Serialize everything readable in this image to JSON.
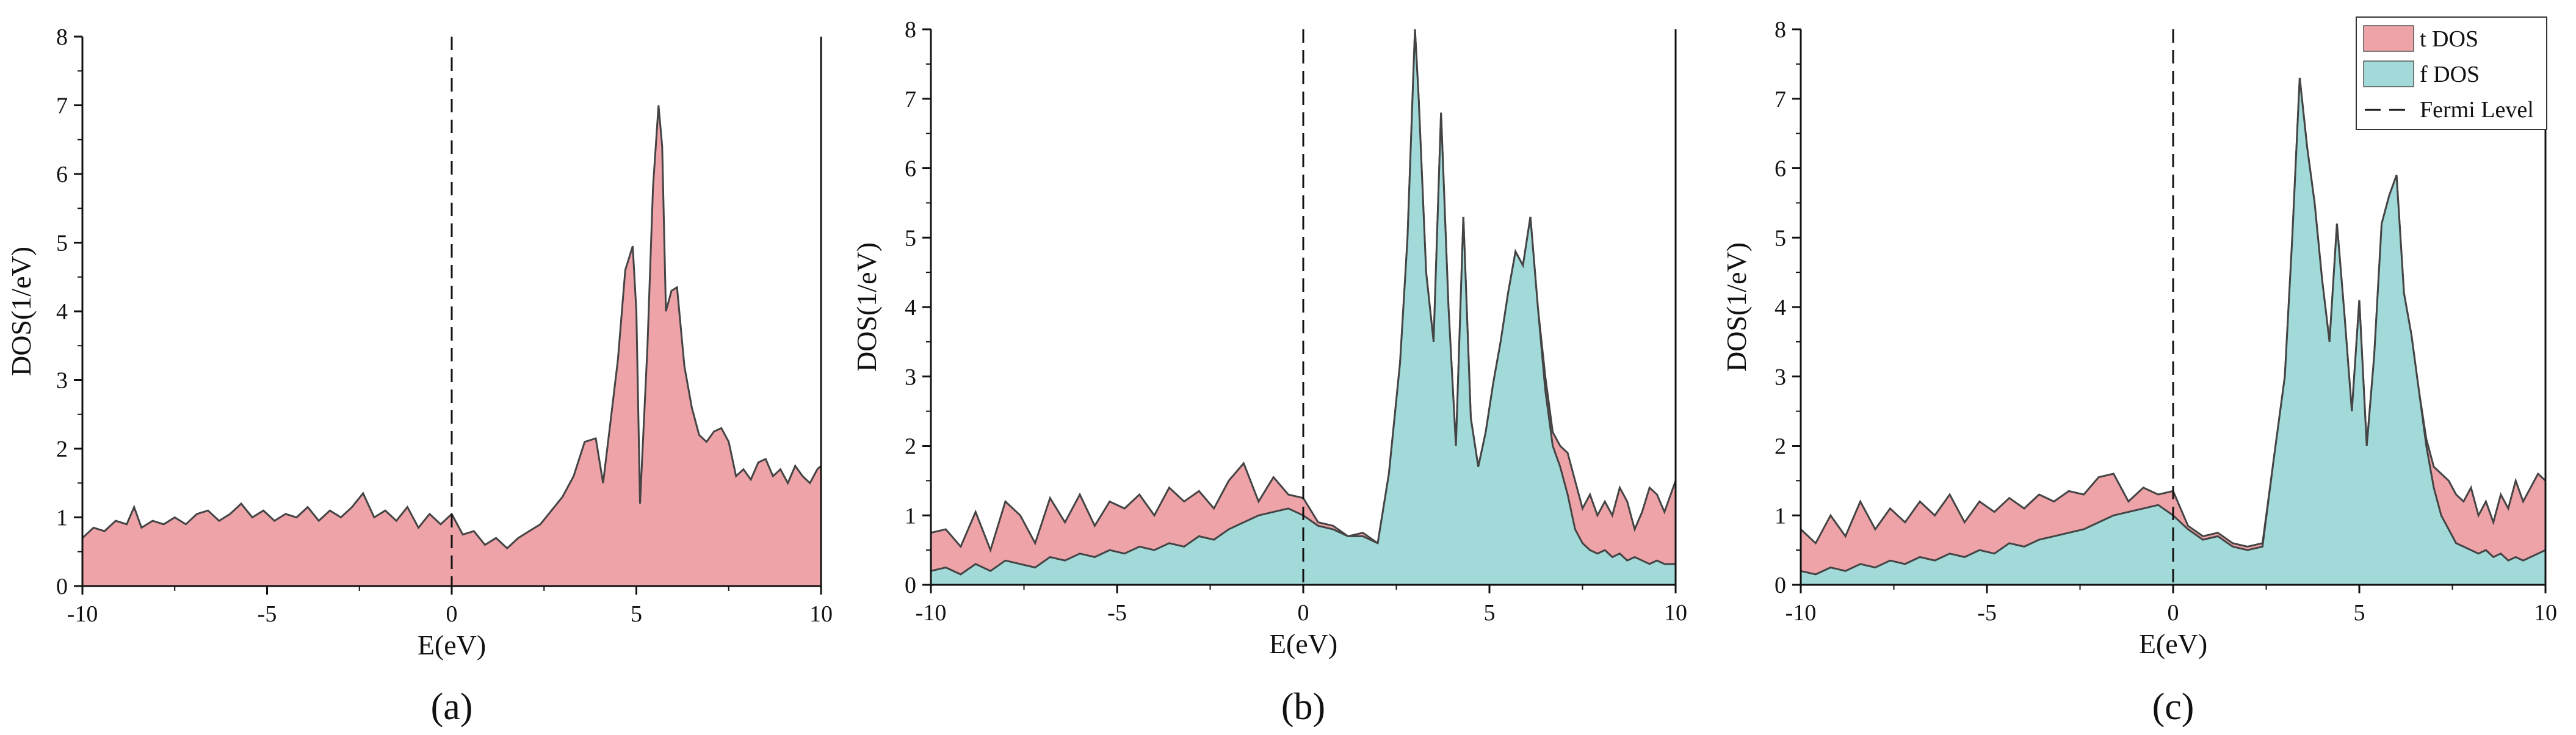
{
  "legend": {
    "entries": [
      {
        "label": "t DOS",
        "kind": "fill",
        "color": "#eda3a8"
      },
      {
        "label": "f DOS",
        "kind": "fill",
        "color": "#a2d9d9"
      },
      {
        "label": "Fermi Level",
        "kind": "dashed-line",
        "color": "#111111"
      }
    ]
  },
  "colors": {
    "tdos_fill": "#eda3a8",
    "fdos_fill": "#a2d9d9",
    "outline": "#444444",
    "axis": "#111111"
  },
  "chart_data": [
    {
      "type": "area",
      "panel_label": "(a)",
      "xlabel": "E(eV)",
      "ylabel": "DOS(1/eV)",
      "xlim": [
        -10,
        10
      ],
      "ylim": [
        0,
        8
      ],
      "xticks": [
        -10,
        -5,
        0,
        5,
        10
      ],
      "yticks": [
        0,
        1,
        2,
        3,
        4,
        5,
        6,
        7,
        8
      ],
      "fermi_level": 0,
      "series": [
        {
          "name": "t DOS",
          "color": "#eda3a8",
          "x": [
            -10,
            -9.7,
            -9.4,
            -9.1,
            -8.8,
            -8.6,
            -8.4,
            -8.1,
            -7.8,
            -7.5,
            -7.2,
            -6.9,
            -6.6,
            -6.3,
            -6.0,
            -5.7,
            -5.4,
            -5.1,
            -4.8,
            -4.5,
            -4.2,
            -3.9,
            -3.6,
            -3.3,
            -3.0,
            -2.7,
            -2.4,
            -2.1,
            -1.8,
            -1.5,
            -1.2,
            -0.9,
            -0.6,
            -0.3,
            0.0,
            0.3,
            0.6,
            0.9,
            1.2,
            1.5,
            1.8,
            2.1,
            2.4,
            2.7,
            3.0,
            3.3,
            3.6,
            3.9,
            4.1,
            4.3,
            4.5,
            4.7,
            4.9,
            5.0,
            5.1,
            5.3,
            5.45,
            5.6,
            5.7,
            5.8,
            5.95,
            6.1,
            6.3,
            6.5,
            6.7,
            6.9,
            7.1,
            7.3,
            7.5,
            7.7,
            7.9,
            8.1,
            8.3,
            8.5,
            8.7,
            8.9,
            9.1,
            9.3,
            9.5,
            9.7,
            9.9,
            10.0
          ],
          "y": [
            0.7,
            0.85,
            0.8,
            0.95,
            0.9,
            1.15,
            0.85,
            0.95,
            0.9,
            1.0,
            0.9,
            1.05,
            1.1,
            0.95,
            1.05,
            1.2,
            1.0,
            1.1,
            0.95,
            1.05,
            1.0,
            1.15,
            0.95,
            1.1,
            1.0,
            1.15,
            1.35,
            1.0,
            1.1,
            0.95,
            1.15,
            0.85,
            1.05,
            0.9,
            1.05,
            0.75,
            0.8,
            0.6,
            0.7,
            0.55,
            0.7,
            0.8,
            0.9,
            1.1,
            1.3,
            1.6,
            2.1,
            2.15,
            1.5,
            2.4,
            3.3,
            4.6,
            4.95,
            4.0,
            1.2,
            3.5,
            5.8,
            7.0,
            6.4,
            4.0,
            4.3,
            4.35,
            3.2,
            2.6,
            2.2,
            2.1,
            2.25,
            2.3,
            2.1,
            1.6,
            1.7,
            1.55,
            1.8,
            1.85,
            1.6,
            1.7,
            1.5,
            1.75,
            1.6,
            1.5,
            1.7,
            1.75
          ]
        }
      ]
    },
    {
      "type": "area",
      "panel_label": "(b)",
      "xlabel": "E(eV)",
      "ylabel": "DOS(1/eV)",
      "xlim": [
        -10,
        10
      ],
      "ylim": [
        0,
        8
      ],
      "xticks": [
        -10,
        -5,
        0,
        5,
        10
      ],
      "yticks": [
        0,
        1,
        2,
        3,
        4,
        5,
        6,
        7,
        8
      ],
      "fermi_level": 0,
      "series": [
        {
          "name": "t DOS",
          "color": "#eda3a8",
          "x": [
            -10,
            -9.6,
            -9.2,
            -8.8,
            -8.4,
            -8.0,
            -7.6,
            -7.2,
            -6.8,
            -6.4,
            -6.0,
            -5.6,
            -5.2,
            -4.8,
            -4.4,
            -4.0,
            -3.6,
            -3.2,
            -2.8,
            -2.4,
            -2.0,
            -1.6,
            -1.2,
            -0.8,
            -0.4,
            0.0,
            0.4,
            0.8,
            1.2,
            1.6,
            2.0,
            2.3,
            2.6,
            2.8,
            3.0,
            3.1,
            3.3,
            3.5,
            3.7,
            3.9,
            4.1,
            4.3,
            4.5,
            4.7,
            4.9,
            5.1,
            5.3,
            5.5,
            5.7,
            5.9,
            6.1,
            6.3,
            6.5,
            6.7,
            6.9,
            7.1,
            7.3,
            7.5,
            7.7,
            7.9,
            8.1,
            8.3,
            8.5,
            8.7,
            8.9,
            9.1,
            9.3,
            9.5,
            9.7,
            10.0
          ],
          "y": [
            0.75,
            0.8,
            0.55,
            1.05,
            0.5,
            1.2,
            1.0,
            0.6,
            1.25,
            0.9,
            1.3,
            0.85,
            1.2,
            1.1,
            1.3,
            1.0,
            1.4,
            1.2,
            1.35,
            1.1,
            1.5,
            1.75,
            1.2,
            1.55,
            1.3,
            1.25,
            0.9,
            0.85,
            0.7,
            0.75,
            0.6,
            1.6,
            3.2,
            5.0,
            8.0,
            7.0,
            4.5,
            3.5,
            6.8,
            4.0,
            2.0,
            5.3,
            2.4,
            1.7,
            2.2,
            2.9,
            3.5,
            4.2,
            4.8,
            4.6,
            5.3,
            4.0,
            3.0,
            2.2,
            2.0,
            1.9,
            1.5,
            1.1,
            1.3,
            1.0,
            1.2,
            1.0,
            1.4,
            1.2,
            0.8,
            1.05,
            1.4,
            1.3,
            1.05,
            1.5
          ]
        },
        {
          "name": "f DOS",
          "color": "#a2d9d9",
          "x": [
            -10,
            -9.6,
            -9.2,
            -8.8,
            -8.4,
            -8.0,
            -7.6,
            -7.2,
            -6.8,
            -6.4,
            -6.0,
            -5.6,
            -5.2,
            -4.8,
            -4.4,
            -4.0,
            -3.6,
            -3.2,
            -2.8,
            -2.4,
            -2.0,
            -1.6,
            -1.2,
            -0.8,
            -0.4,
            0.0,
            0.4,
            0.8,
            1.2,
            1.6,
            2.0,
            2.3,
            2.6,
            2.8,
            3.0,
            3.1,
            3.3,
            3.5,
            3.7,
            3.9,
            4.1,
            4.3,
            4.5,
            4.7,
            4.9,
            5.1,
            5.3,
            5.5,
            5.7,
            5.9,
            6.1,
            6.3,
            6.5,
            6.7,
            6.9,
            7.1,
            7.3,
            7.5,
            7.7,
            7.9,
            8.1,
            8.3,
            8.5,
            8.7,
            8.9,
            9.1,
            9.3,
            9.5,
            9.7,
            10.0
          ],
          "y": [
            0.2,
            0.25,
            0.15,
            0.3,
            0.2,
            0.35,
            0.3,
            0.25,
            0.4,
            0.35,
            0.45,
            0.4,
            0.5,
            0.45,
            0.55,
            0.5,
            0.6,
            0.55,
            0.7,
            0.65,
            0.8,
            0.9,
            1.0,
            1.05,
            1.1,
            1.0,
            0.85,
            0.8,
            0.7,
            0.7,
            0.6,
            1.6,
            3.2,
            5.0,
            8.0,
            7.0,
            4.5,
            3.5,
            6.8,
            4.0,
            2.0,
            5.3,
            2.4,
            1.7,
            2.2,
            2.9,
            3.5,
            4.2,
            4.8,
            4.6,
            5.3,
            4.0,
            2.8,
            2.0,
            1.7,
            1.3,
            0.8,
            0.6,
            0.5,
            0.45,
            0.5,
            0.4,
            0.45,
            0.35,
            0.4,
            0.35,
            0.3,
            0.35,
            0.3,
            0.3
          ]
        }
      ]
    },
    {
      "type": "area",
      "panel_label": "(c)",
      "xlabel": "E(eV)",
      "ylabel": "DOS(1/eV)",
      "xlim": [
        -10,
        10
      ],
      "ylim": [
        0,
        8
      ],
      "xticks": [
        -10,
        -5,
        0,
        5,
        10
      ],
      "yticks": [
        0,
        1,
        2,
        3,
        4,
        5,
        6,
        7,
        8
      ],
      "fermi_level": 0,
      "series": [
        {
          "name": "t DOS",
          "color": "#eda3a8",
          "x": [
            -10,
            -9.6,
            -9.2,
            -8.8,
            -8.4,
            -8.0,
            -7.6,
            -7.2,
            -6.8,
            -6.4,
            -6.0,
            -5.6,
            -5.2,
            -4.8,
            -4.4,
            -4.0,
            -3.6,
            -3.2,
            -2.8,
            -2.4,
            -2.0,
            -1.6,
            -1.2,
            -0.8,
            -0.4,
            0.0,
            0.4,
            0.8,
            1.2,
            1.6,
            2.0,
            2.4,
            2.7,
            3.0,
            3.2,
            3.4,
            3.6,
            3.8,
            4.0,
            4.2,
            4.4,
            4.6,
            4.8,
            5.0,
            5.2,
            5.4,
            5.6,
            5.8,
            6.0,
            6.2,
            6.4,
            6.6,
            6.8,
            7.0,
            7.2,
            7.4,
            7.6,
            7.8,
            8.0,
            8.2,
            8.4,
            8.6,
            8.8,
            9.0,
            9.2,
            9.4,
            9.6,
            9.8,
            10.0
          ],
          "y": [
            0.8,
            0.6,
            1.0,
            0.7,
            1.2,
            0.8,
            1.1,
            0.9,
            1.2,
            1.0,
            1.3,
            0.9,
            1.2,
            1.05,
            1.25,
            1.1,
            1.3,
            1.2,
            1.35,
            1.3,
            1.55,
            1.6,
            1.2,
            1.4,
            1.3,
            1.35,
            0.85,
            0.7,
            0.75,
            0.6,
            0.55,
            0.6,
            1.8,
            3.0,
            5.0,
            7.3,
            6.3,
            5.5,
            4.4,
            3.5,
            5.2,
            3.9,
            2.5,
            4.1,
            2.0,
            3.3,
            5.2,
            5.6,
            5.9,
            4.2,
            3.6,
            2.8,
            2.1,
            1.7,
            1.6,
            1.5,
            1.3,
            1.2,
            1.4,
            1.0,
            1.2,
            0.9,
            1.3,
            1.1,
            1.5,
            1.2,
            1.4,
            1.6,
            1.5
          ]
        },
        {
          "name": "f DOS",
          "color": "#a2d9d9",
          "x": [
            -10,
            -9.6,
            -9.2,
            -8.8,
            -8.4,
            -8.0,
            -7.6,
            -7.2,
            -6.8,
            -6.4,
            -6.0,
            -5.6,
            -5.2,
            -4.8,
            -4.4,
            -4.0,
            -3.6,
            -3.2,
            -2.8,
            -2.4,
            -2.0,
            -1.6,
            -1.2,
            -0.8,
            -0.4,
            0.0,
            0.4,
            0.8,
            1.2,
            1.6,
            2.0,
            2.4,
            2.7,
            3.0,
            3.2,
            3.4,
            3.6,
            3.8,
            4.0,
            4.2,
            4.4,
            4.6,
            4.8,
            5.0,
            5.2,
            5.4,
            5.6,
            5.8,
            6.0,
            6.2,
            6.4,
            6.6,
            6.8,
            7.0,
            7.2,
            7.4,
            7.6,
            7.8,
            8.0,
            8.2,
            8.4,
            8.6,
            8.8,
            9.0,
            9.2,
            9.4,
            9.6,
            9.8,
            10.0
          ],
          "y": [
            0.2,
            0.15,
            0.25,
            0.2,
            0.3,
            0.25,
            0.35,
            0.3,
            0.4,
            0.35,
            0.45,
            0.4,
            0.5,
            0.45,
            0.6,
            0.55,
            0.65,
            0.7,
            0.75,
            0.8,
            0.9,
            1.0,
            1.05,
            1.1,
            1.15,
            1.0,
            0.8,
            0.65,
            0.7,
            0.55,
            0.5,
            0.55,
            1.8,
            3.0,
            5.0,
            7.3,
            6.3,
            5.5,
            4.4,
            3.5,
            5.2,
            3.9,
            2.5,
            4.1,
            2.0,
            3.3,
            5.2,
            5.6,
            5.9,
            4.2,
            3.6,
            2.8,
            2.0,
            1.4,
            1.0,
            0.8,
            0.6,
            0.55,
            0.5,
            0.45,
            0.5,
            0.4,
            0.45,
            0.35,
            0.4,
            0.35,
            0.4,
            0.45,
            0.5
          ]
        }
      ]
    }
  ]
}
